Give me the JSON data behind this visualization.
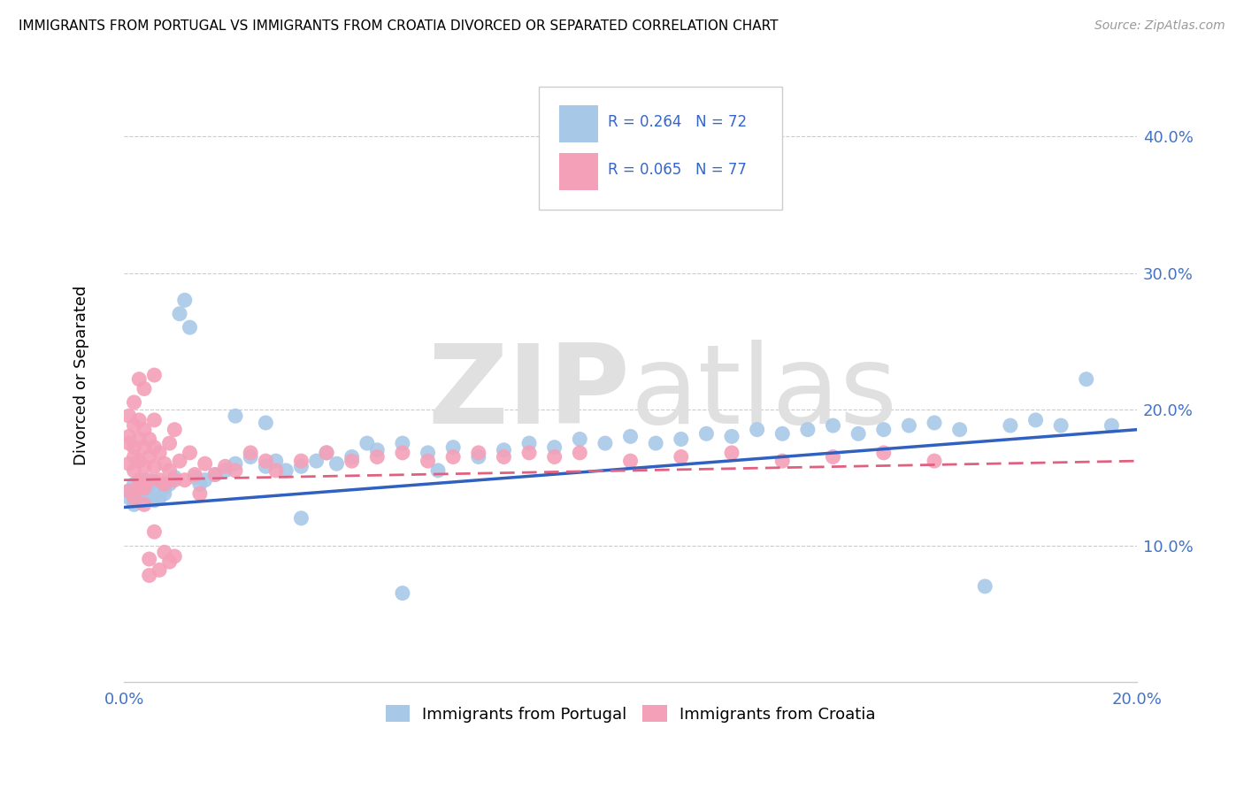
{
  "title": "IMMIGRANTS FROM PORTUGAL VS IMMIGRANTS FROM CROATIA DIVORCED OR SEPARATED CORRELATION CHART",
  "source": "Source: ZipAtlas.com",
  "ylabel": "Divorced or Separated",
  "right_yticks": [
    0.1,
    0.2,
    0.3,
    0.4
  ],
  "right_yticklabels": [
    "10.0%",
    "20.0%",
    "30.0%",
    "40.0%"
  ],
  "xlim": [
    0.0,
    0.2
  ],
  "ylim": [
    0.0,
    0.45
  ],
  "portugal_R": 0.264,
  "portugal_N": 72,
  "croatia_R": 0.065,
  "croatia_N": 77,
  "portugal_color": "#a8c8e8",
  "croatia_color": "#f4a0b8",
  "portugal_line_color": "#3060c0",
  "croatia_line_color": "#e06080",
  "legend_labels": [
    "Immigrants from Portugal",
    "Immigrants from Croatia"
  ],
  "portugal_trend_start": 0.128,
  "portugal_trend_end": 0.185,
  "croatia_trend_start": 0.148,
  "croatia_trend_end": 0.162,
  "portugal_scatter_x": [
    0.001,
    0.001,
    0.002,
    0.002,
    0.003,
    0.003,
    0.004,
    0.004,
    0.005,
    0.005,
    0.006,
    0.006,
    0.007,
    0.007,
    0.008,
    0.008,
    0.009,
    0.01,
    0.011,
    0.012,
    0.013,
    0.014,
    0.015,
    0.016,
    0.018,
    0.02,
    0.022,
    0.025,
    0.028,
    0.03,
    0.032,
    0.035,
    0.038,
    0.04,
    0.042,
    0.045,
    0.05,
    0.055,
    0.06,
    0.065,
    0.07,
    0.075,
    0.08,
    0.085,
    0.09,
    0.095,
    0.1,
    0.105,
    0.11,
    0.115,
    0.12,
    0.125,
    0.13,
    0.135,
    0.14,
    0.145,
    0.15,
    0.155,
    0.16,
    0.165,
    0.17,
    0.175,
    0.18,
    0.185,
    0.19,
    0.195,
    0.022,
    0.028,
    0.035,
    0.048,
    0.055,
    0.062
  ],
  "portugal_scatter_y": [
    0.135,
    0.14,
    0.13,
    0.145,
    0.132,
    0.142,
    0.138,
    0.148,
    0.136,
    0.144,
    0.133,
    0.147,
    0.14,
    0.135,
    0.142,
    0.138,
    0.145,
    0.15,
    0.27,
    0.28,
    0.26,
    0.15,
    0.145,
    0.148,
    0.152,
    0.155,
    0.16,
    0.165,
    0.158,
    0.162,
    0.155,
    0.158,
    0.162,
    0.168,
    0.16,
    0.165,
    0.17,
    0.175,
    0.168,
    0.172,
    0.165,
    0.17,
    0.175,
    0.172,
    0.178,
    0.175,
    0.18,
    0.175,
    0.178,
    0.182,
    0.18,
    0.185,
    0.182,
    0.185,
    0.188,
    0.182,
    0.185,
    0.188,
    0.19,
    0.185,
    0.07,
    0.188,
    0.192,
    0.188,
    0.222,
    0.188,
    0.195,
    0.19,
    0.12,
    0.175,
    0.065,
    0.155
  ],
  "croatia_scatter_x": [
    0.001,
    0.001,
    0.001,
    0.001,
    0.001,
    0.002,
    0.002,
    0.002,
    0.002,
    0.002,
    0.003,
    0.003,
    0.003,
    0.003,
    0.003,
    0.004,
    0.004,
    0.004,
    0.004,
    0.005,
    0.005,
    0.005,
    0.006,
    0.006,
    0.006,
    0.007,
    0.007,
    0.008,
    0.008,
    0.009,
    0.009,
    0.01,
    0.01,
    0.011,
    0.012,
    0.013,
    0.014,
    0.015,
    0.016,
    0.018,
    0.02,
    0.022,
    0.025,
    0.028,
    0.03,
    0.035,
    0.04,
    0.045,
    0.05,
    0.055,
    0.06,
    0.065,
    0.07,
    0.075,
    0.08,
    0.085,
    0.09,
    0.1,
    0.11,
    0.12,
    0.13,
    0.14,
    0.15,
    0.16,
    0.002,
    0.003,
    0.003,
    0.004,
    0.004,
    0.005,
    0.005,
    0.006,
    0.006,
    0.007,
    0.008,
    0.009,
    0.01
  ],
  "croatia_scatter_y": [
    0.14,
    0.16,
    0.18,
    0.195,
    0.175,
    0.135,
    0.155,
    0.172,
    0.188,
    0.165,
    0.148,
    0.162,
    0.178,
    0.192,
    0.145,
    0.158,
    0.172,
    0.185,
    0.142,
    0.165,
    0.178,
    0.148,
    0.192,
    0.158,
    0.172,
    0.148,
    0.168,
    0.16,
    0.145,
    0.175,
    0.155,
    0.185,
    0.148,
    0.162,
    0.148,
    0.168,
    0.152,
    0.138,
    0.16,
    0.152,
    0.158,
    0.155,
    0.168,
    0.162,
    0.155,
    0.162,
    0.168,
    0.162,
    0.165,
    0.168,
    0.162,
    0.165,
    0.168,
    0.165,
    0.168,
    0.165,
    0.168,
    0.162,
    0.165,
    0.168,
    0.162,
    0.165,
    0.168,
    0.162,
    0.205,
    0.222,
    0.142,
    0.215,
    0.13,
    0.09,
    0.078,
    0.225,
    0.11,
    0.082,
    0.095,
    0.088,
    0.092
  ]
}
